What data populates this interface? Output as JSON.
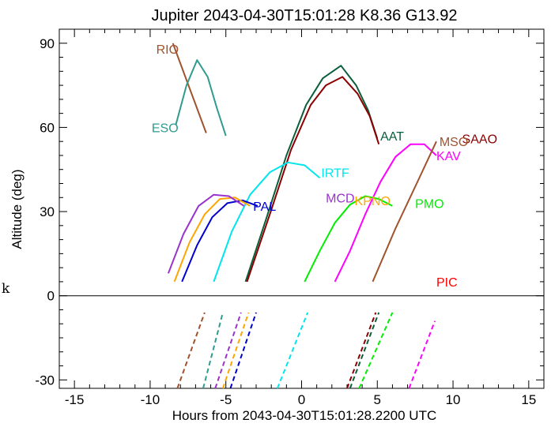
{
  "chart_data": {
    "type": "line",
    "title": "Jupiter 2043-04-30T15:01:28  K8.36  G13.92",
    "xlabel": "Hours from 2043-04-30T15:01:28.2200 UTC",
    "ylabel": "Altitude (deg)",
    "xlim": [
      -16,
      16
    ],
    "ylim": [
      -33,
      95
    ],
    "xticks": [
      -15,
      -10,
      -5,
      0,
      5,
      10,
      15
    ],
    "yticks": [
      -30,
      0,
      30,
      60,
      90
    ],
    "side_text": "k",
    "grid": false,
    "legend": "none",
    "series": [
      {
        "name": "RIO",
        "color": "#a0522d",
        "points": [
          [
            -8.5,
            90
          ],
          [
            -6.3,
            58
          ]
        ],
        "label_at": [
          -9.6,
          88
        ],
        "dashed_points": [
          [
            -8.2,
            -33
          ],
          [
            -6.4,
            -6
          ]
        ]
      },
      {
        "name": "ESO",
        "color": "#2e9b8f",
        "points": [
          [
            -8.3,
            61
          ],
          [
            -7.6,
            75
          ],
          [
            -6.9,
            84
          ],
          [
            -6.2,
            78
          ],
          [
            -5.6,
            67
          ],
          [
            -5.0,
            57
          ]
        ],
        "label_at": [
          -9.9,
          60
        ],
        "dashed_points": [
          [
            -6.5,
            -33
          ],
          [
            -5.2,
            -6
          ]
        ]
      },
      {
        "name": "AAT",
        "color": "#0b5e3c",
        "points": [
          [
            -3.7,
            5
          ],
          [
            -2.3,
            28
          ],
          [
            -1.0,
            50
          ],
          [
            0.3,
            68
          ],
          [
            1.4,
            77.5
          ],
          [
            2.6,
            82
          ],
          [
            3.6,
            75
          ],
          [
            4.4,
            66
          ],
          [
            5.0,
            56
          ]
        ],
        "label_at": [
          5.2,
          57
        ],
        "dashed_points": [
          [
            3.2,
            -33
          ],
          [
            5.1,
            -6
          ]
        ]
      },
      {
        "name": "SAAO",
        "color": "#8b0000",
        "points": [
          [
            -3.6,
            5
          ],
          [
            -2.1,
            29
          ],
          [
            -0.7,
            52
          ],
          [
            0.6,
            68
          ],
          [
            1.6,
            75
          ],
          [
            2.7,
            78
          ],
          [
            3.7,
            72
          ],
          [
            4.5,
            64
          ],
          [
            5.1,
            54
          ]
        ],
        "label_at": [
          10.6,
          56
        ],
        "dashed_points": [
          [
            3.0,
            -33
          ],
          [
            4.9,
            -6
          ]
        ]
      },
      {
        "name": "IRTF",
        "color": "#00e5ee",
        "points": [
          [
            -5.8,
            5
          ],
          [
            -4.6,
            23
          ],
          [
            -3.4,
            36
          ],
          [
            -2.1,
            44
          ],
          [
            -0.9,
            47.5
          ],
          [
            0.2,
            46.5
          ],
          [
            1.2,
            42
          ]
        ],
        "label_at": [
          1.3,
          44
        ],
        "dashed_points": [
          [
            -1.6,
            -33
          ],
          [
            0.4,
            -6
          ]
        ]
      },
      {
        "name": "PAL",
        "color": "#0000cd",
        "points": [
          [
            -7.9,
            5
          ],
          [
            -6.9,
            18
          ],
          [
            -5.9,
            28
          ],
          [
            -4.9,
            33
          ],
          [
            -3.9,
            34
          ],
          [
            -2.9,
            32
          ]
        ],
        "label_at": [
          -3.2,
          32
        ],
        "dashed_points": [
          [
            -4.7,
            -33
          ],
          [
            -3.0,
            -6
          ]
        ]
      },
      {
        "name": "KPNO",
        "color": "#ffa500",
        "points": [
          [
            -8.4,
            5
          ],
          [
            -7.4,
            19
          ],
          [
            -6.4,
            29
          ],
          [
            -5.4,
            34.5
          ],
          [
            -4.4,
            35
          ],
          [
            -3.4,
            32
          ]
        ],
        "label_at": [
          3.5,
          34
        ],
        "dashed_points": [
          [
            -5.2,
            -33
          ],
          [
            -3.5,
            -6
          ]
        ]
      },
      {
        "name": "MCD",
        "color": "#9a32cd",
        "points": [
          [
            -8.8,
            8
          ],
          [
            -7.8,
            22
          ],
          [
            -6.8,
            32
          ],
          [
            -5.8,
            36
          ],
          [
            -4.8,
            35.5
          ],
          [
            -3.8,
            32
          ]
        ],
        "label_at": [
          1.6,
          35
        ],
        "dashed_points": [
          [
            -5.7,
            -33
          ],
          [
            -4.0,
            -6
          ]
        ]
      },
      {
        "name": "PMO",
        "color": "#00ee00",
        "points": [
          [
            0.2,
            5
          ],
          [
            1.2,
            16
          ],
          [
            2.2,
            26
          ],
          [
            3.2,
            32.5
          ],
          [
            4.2,
            35.5
          ],
          [
            5.1,
            34.5
          ],
          [
            6.0,
            32
          ]
        ],
        "label_at": [
          7.5,
          33
        ],
        "dashed_points": [
          [
            3.8,
            -33
          ],
          [
            6.0,
            -6
          ]
        ]
      },
      {
        "name": "KAV",
        "color": "#ff00ff",
        "points": [
          [
            2.2,
            5
          ],
          [
            3.2,
            16
          ],
          [
            4.2,
            29
          ],
          [
            5.2,
            40.5
          ],
          [
            6.2,
            49.5
          ],
          [
            7.2,
            54
          ],
          [
            8.1,
            54
          ],
          [
            8.9,
            50
          ]
        ],
        "label_at": [
          8.9,
          50
        ],
        "dashed_points": [
          [
            7.1,
            -33
          ],
          [
            8.8,
            -9
          ]
        ]
      },
      {
        "name": "MSO",
        "color": "#a0522d",
        "points": [
          [
            4.7,
            5
          ],
          [
            6.2,
            24
          ],
          [
            7.6,
            40
          ],
          [
            8.9,
            55
          ]
        ],
        "label_at": [
          9.1,
          55
        ],
        "dashed_points": []
      },
      {
        "name": "PIC",
        "color": "#ff0000",
        "points": [],
        "label_at": [
          8.9,
          5
        ],
        "dashed_points": []
      }
    ]
  }
}
